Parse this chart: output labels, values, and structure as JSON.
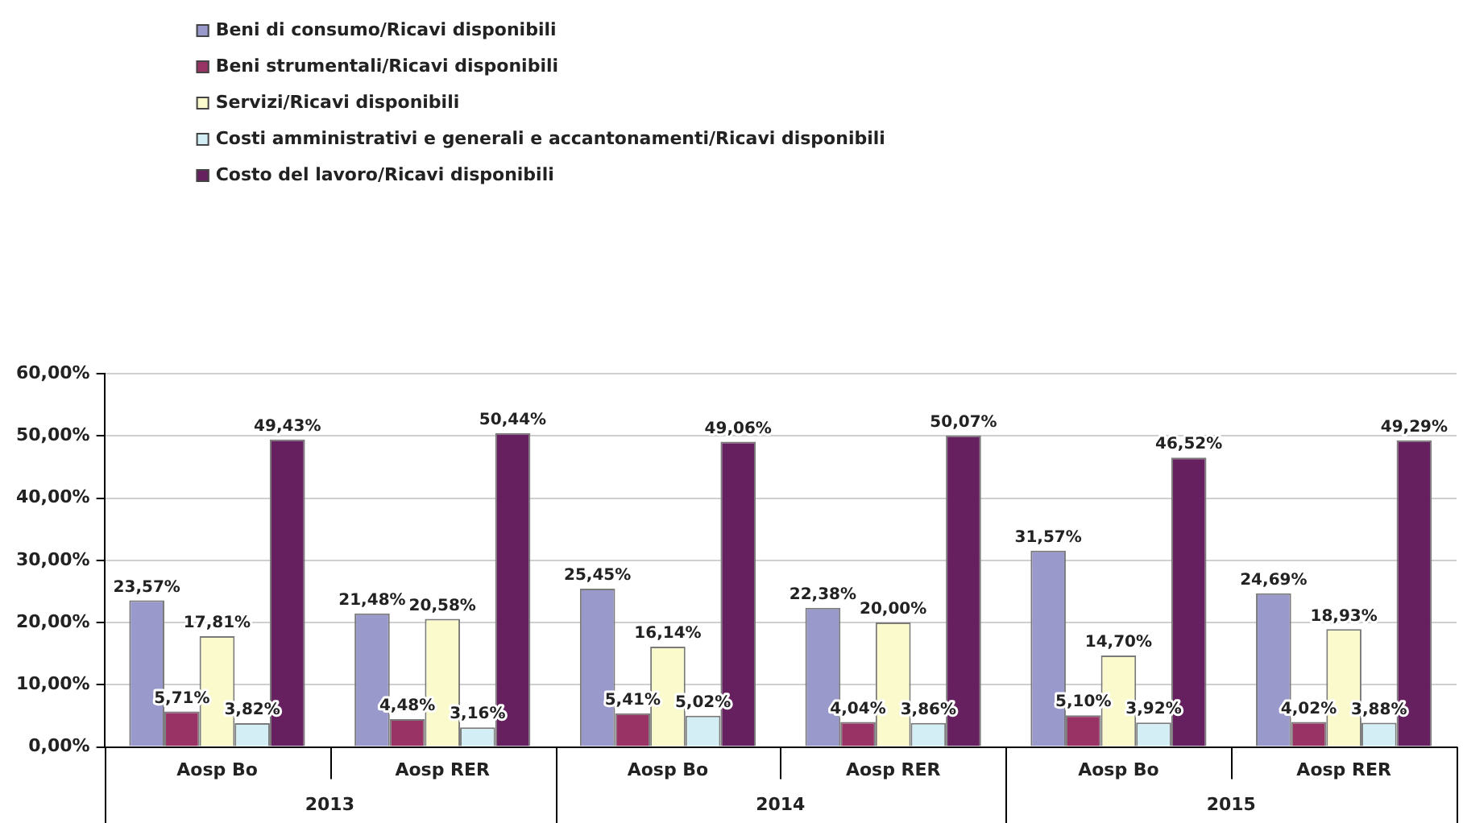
{
  "chart_data": {
    "type": "bar",
    "categories": [
      "Aosp Bo",
      "Aosp RER",
      "Aosp Bo",
      "Aosp RER",
      "Aosp Bo",
      "Aosp RER"
    ],
    "annotations": [
      "2013",
      "2014",
      "2015"
    ],
    "series": [
      {
        "name": "Beni di consumo/Ricavi disponibili",
        "color": "#9999cc",
        "values": [
          23.57,
          21.48,
          25.45,
          22.38,
          31.57,
          24.69
        ],
        "value_labels": [
          "23,57%",
          "21,48%",
          "25,45%",
          "22,38%",
          "31,57%",
          "24,69%"
        ]
      },
      {
        "name": "Beni strumentali/Ricavi disponibili",
        "color": "#993366",
        "values": [
          5.71,
          4.48,
          5.41,
          4.04,
          5.1,
          4.02
        ],
        "value_labels": [
          "5,71%",
          "4,48%",
          "5,41%",
          "4,04%",
          "5,10%",
          "4,02%"
        ]
      },
      {
        "name": "Servizi/Ricavi disponibili",
        "color": "#fafacc",
        "values": [
          17.81,
          20.58,
          16.14,
          20.0,
          14.7,
          18.93
        ],
        "value_labels": [
          "17,81%",
          "20,58%",
          "16,14%",
          "20,00%",
          "14,70%",
          "18,93%"
        ]
      },
      {
        "name": "Costi amministrativi e generali e accantonamenti/Ricavi disponibili",
        "color": "#d4eef5",
        "values": [
          3.82,
          3.16,
          5.02,
          3.86,
          3.92,
          3.88
        ],
        "value_labels": [
          "3,82%",
          "3,16%",
          "5,02%",
          "3,86%",
          "3,92%",
          "3,88%"
        ]
      },
      {
        "name": "Costo del lavoro/Ricavi disponibili",
        "color": "#66205f",
        "values": [
          49.43,
          50.44,
          49.06,
          50.07,
          46.52,
          49.29
        ],
        "value_labels": [
          "49,43%",
          "50,44%",
          "49,06%",
          "50,07%",
          "46,52%",
          "49,29%"
        ]
      }
    ],
    "ylim": [
      0,
      60
    ],
    "yticks": [
      {
        "value": 0,
        "label": "0,00%"
      },
      {
        "value": 10,
        "label": "10,00%"
      },
      {
        "value": 20,
        "label": "20,00%"
      },
      {
        "value": 30,
        "label": "30,00%"
      },
      {
        "value": 40,
        "label": "40,00%"
      },
      {
        "value": 50,
        "label": "50,00%"
      },
      {
        "value": 60,
        "label": "60,00%"
      }
    ],
    "grid": "y",
    "legend": "top left"
  }
}
